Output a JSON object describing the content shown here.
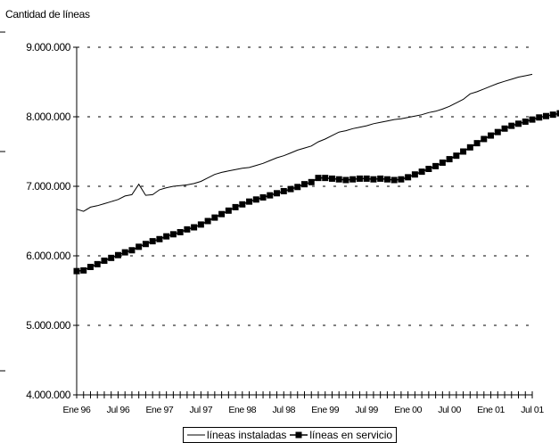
{
  "chart_data": {
    "type": "line",
    "title": "",
    "ylabel": "Cantidad de líneas",
    "xlabel": "",
    "ylim": [
      4000000,
      9000000
    ],
    "yticks": [
      "4.000.000",
      "5.000.000",
      "6.000.000",
      "7.000.000",
      "8.000.000",
      "9.000.000"
    ],
    "ytick_values": [
      4000000,
      5000000,
      6000000,
      7000000,
      8000000,
      9000000
    ],
    "xtick_labels": [
      "Ene 96",
      "Jul 96",
      "Ene 97",
      "Jul 97",
      "Ene 98",
      "Jul 98",
      "Ene 99",
      "Jul 99",
      "Ene 00",
      "Jul 00",
      "Ene 01",
      "Jul 01"
    ],
    "grid": "horizontal dashed",
    "legend_position": "bottom",
    "x_start": "Ene 96",
    "x_frequency": "monthly",
    "series": [
      {
        "name": "líneas instaladas",
        "marker": "none",
        "color": "#000000",
        "values": [
          6670000,
          6640000,
          6700000,
          6720000,
          6750000,
          6780000,
          6810000,
          6860000,
          6880000,
          7030000,
          6870000,
          6880000,
          6950000,
          6980000,
          7000000,
          7010000,
          7020000,
          7040000,
          7070000,
          7120000,
          7170000,
          7200000,
          7220000,
          7240000,
          7260000,
          7270000,
          7300000,
          7330000,
          7370000,
          7410000,
          7440000,
          7480000,
          7520000,
          7550000,
          7580000,
          7640000,
          7680000,
          7730000,
          7780000,
          7800000,
          7830000,
          7850000,
          7870000,
          7900000,
          7920000,
          7940000,
          7960000,
          7970000,
          7990000,
          8010000,
          8030000,
          8060000,
          8080000,
          8110000,
          8150000,
          8200000,
          8250000,
          8330000,
          8360000,
          8400000,
          8440000,
          8480000,
          8510000,
          8540000,
          8570000,
          8590000,
          8610000
        ]
      },
      {
        "name": "líneas en servicio",
        "marker": "square",
        "color": "#000000",
        "values": [
          5780000,
          5790000,
          5840000,
          5880000,
          5930000,
          5970000,
          6010000,
          6050000,
          6080000,
          6130000,
          6170000,
          6210000,
          6240000,
          6280000,
          6310000,
          6340000,
          6380000,
          6410000,
          6450000,
          6500000,
          6550000,
          6600000,
          6650000,
          6700000,
          6740000,
          6780000,
          6810000,
          6840000,
          6870000,
          6900000,
          6930000,
          6960000,
          6990000,
          7030000,
          7060000,
          7120000,
          7120000,
          7110000,
          7100000,
          7090000,
          7100000,
          7110000,
          7110000,
          7100000,
          7110000,
          7100000,
          7090000,
          7100000,
          7130000,
          7170000,
          7210000,
          7250000,
          7290000,
          7340000,
          7390000,
          7440000,
          7500000,
          7560000,
          7620000,
          7680000,
          7730000,
          7780000,
          7830000,
          7870000,
          7900000,
          7930000,
          7960000,
          7990000,
          8010000,
          8030000,
          8050000,
          8070000,
          8090000
        ]
      }
    ]
  }
}
